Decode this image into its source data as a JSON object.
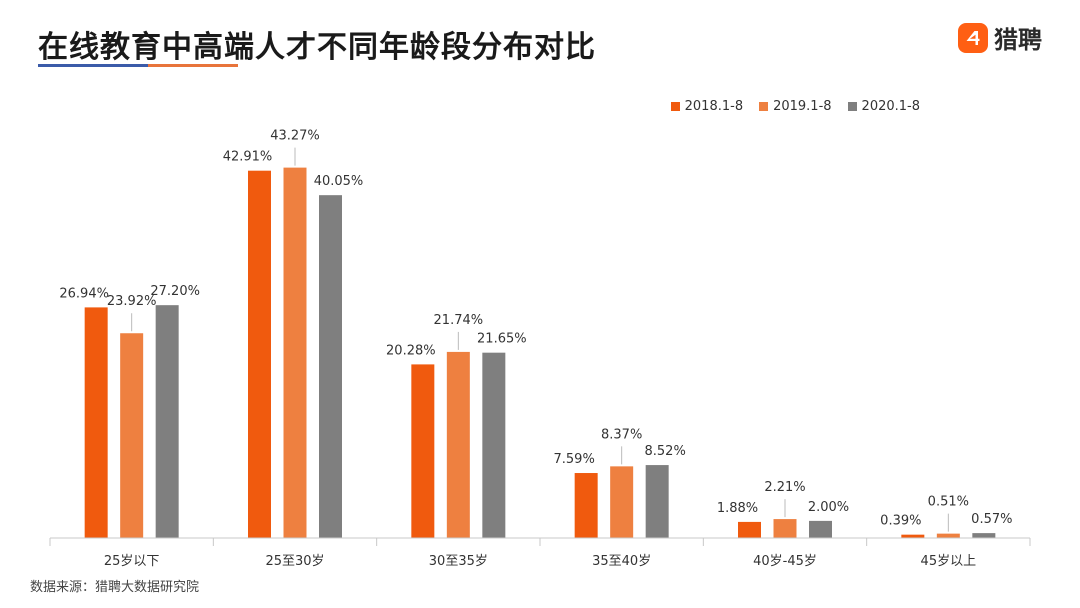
{
  "title": "在线教育中高端人才不同年龄段分布对比",
  "logo": {
    "text": "猎聘"
  },
  "source": "数据来源：猎聘大数据研究院",
  "chart_data": {
    "type": "bar",
    "categories": [
      "25岁以下",
      "25至30岁",
      "30至35岁",
      "35至40岁",
      "40岁-45岁",
      "45岁以上"
    ],
    "series": [
      {
        "name": "2018.1-8",
        "color": "#f05a0e",
        "values": [
          26.94,
          42.91,
          20.28,
          7.59,
          1.88,
          0.39
        ],
        "labels": [
          "26.94%",
          "42.91%",
          "20.28%",
          "7.59%",
          "1.88%",
          "0.39%"
        ]
      },
      {
        "name": "2019.1-8",
        "color": "#ee8040",
        "values": [
          23.92,
          43.27,
          21.74,
          8.37,
          2.21,
          0.51
        ],
        "labels": [
          "23.92%",
          "43.27%",
          "21.74%",
          "8.37%",
          "2.21%",
          "0.51%"
        ]
      },
      {
        "name": "2020.1-8",
        "color": "#7f7f7f",
        "values": [
          27.2,
          40.05,
          21.65,
          8.52,
          2.0,
          0.57
        ],
        "labels": [
          "27.20%",
          "40.05%",
          "21.65%",
          "8.52%",
          "2.00%",
          "0.57%"
        ]
      }
    ],
    "ylim": [
      0,
      50
    ],
    "legend": "top-right",
    "grid": false
  }
}
